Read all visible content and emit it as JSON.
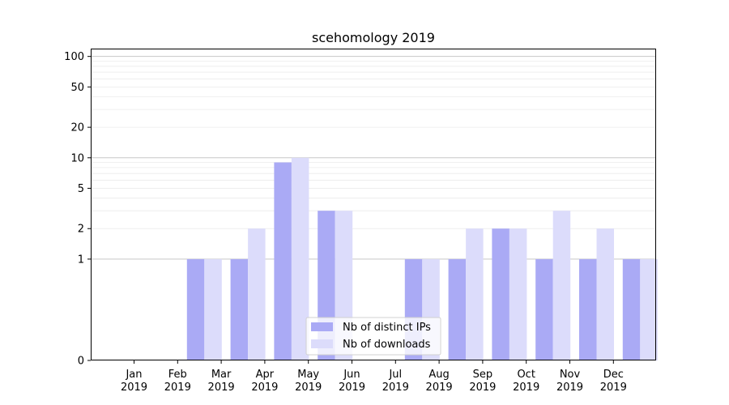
{
  "chart_data": {
    "type": "bar",
    "title": "scehomology 2019",
    "xlabel": "",
    "ylabel": "",
    "yscale": "symlog",
    "ylim": [
      0,
      120
    ],
    "yticks": [
      0,
      1,
      2,
      5,
      10,
      20,
      50,
      100
    ],
    "grid": "horizontal minor",
    "legend_position": "bottom-center",
    "categories": [
      [
        "Jan",
        "2019"
      ],
      [
        "Feb",
        "2019"
      ],
      [
        "Mar",
        "2019"
      ],
      [
        "Apr",
        "2019"
      ],
      [
        "May",
        "2019"
      ],
      [
        "Jun",
        "2019"
      ],
      [
        "Jul",
        "2019"
      ],
      [
        "Aug",
        "2019"
      ],
      [
        "Sep",
        "2019"
      ],
      [
        "Oct",
        "2019"
      ],
      [
        "Nov",
        "2019"
      ],
      [
        "Dec",
        "2019"
      ]
    ],
    "series": [
      {
        "name": "Nb of distinct IPs",
        "color": "#aaaaf5",
        "values": [
          0,
          1,
          1,
          9,
          3,
          0,
          1,
          1,
          2,
          1,
          1,
          1
        ]
      },
      {
        "name": "Nb of downloads",
        "color": "#dcdcfb",
        "values": [
          0,
          1,
          2,
          10,
          3,
          0,
          1,
          2,
          2,
          3,
          2,
          1
        ]
      }
    ]
  }
}
